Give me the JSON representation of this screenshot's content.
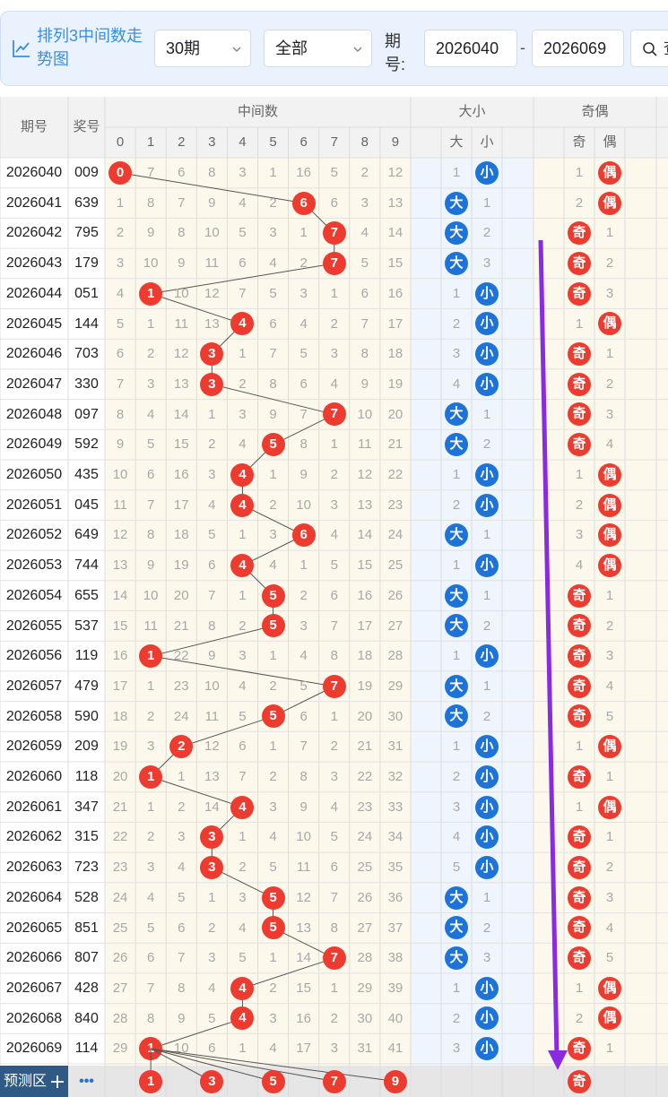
{
  "toolbar": {
    "title": "排列3中间数走势图",
    "period_select": "30期",
    "type_select": "全部",
    "issue_label": "期号:",
    "start_issue": "2026040",
    "separator": "-",
    "end_issue": "2026069",
    "search_label": "查询"
  },
  "headers": {
    "issue": "期号",
    "prize": "奖号",
    "middle": "中间数",
    "size": "大小",
    "parity": "奇偶",
    "digits": [
      "0",
      "1",
      "2",
      "3",
      "4",
      "5",
      "6",
      "7",
      "8",
      "9"
    ],
    "size_cols": [
      "大",
      "小"
    ],
    "parity_cols": [
      "奇",
      "偶"
    ]
  },
  "rows": [
    {
      "issue": "2026040",
      "prize": "009",
      "mid": 0,
      "miss": [
        0,
        7,
        6,
        8,
        3,
        1,
        16,
        5,
        2,
        12
      ],
      "size": "小",
      "size_miss": [
        1,
        0
      ],
      "parity": "偶",
      "parity_miss": [
        1,
        0
      ]
    },
    {
      "issue": "2026041",
      "prize": "639",
      "mid": 6,
      "miss": [
        1,
        8,
        7,
        9,
        4,
        2,
        0,
        6,
        3,
        13
      ],
      "size": "大",
      "size_miss": [
        0,
        1
      ],
      "parity": "偶",
      "parity_miss": [
        2,
        0
      ]
    },
    {
      "issue": "2026042",
      "prize": "795",
      "mid": 7,
      "miss": [
        2,
        9,
        8,
        10,
        5,
        3,
        1,
        0,
        4,
        14
      ],
      "size": "大",
      "size_miss": [
        0,
        2
      ],
      "parity": "奇",
      "parity_miss": [
        0,
        1
      ]
    },
    {
      "issue": "2026043",
      "prize": "179",
      "mid": 7,
      "miss": [
        3,
        10,
        9,
        11,
        6,
        4,
        2,
        0,
        5,
        15
      ],
      "size": "大",
      "size_miss": [
        0,
        3
      ],
      "parity": "奇",
      "parity_miss": [
        0,
        2
      ]
    },
    {
      "issue": "2026044",
      "prize": "051",
      "mid": 1,
      "miss": [
        4,
        0,
        10,
        12,
        7,
        5,
        3,
        1,
        6,
        16
      ],
      "size": "小",
      "size_miss": [
        1,
        0
      ],
      "parity": "奇",
      "parity_miss": [
        0,
        3
      ]
    },
    {
      "issue": "2026045",
      "prize": "144",
      "mid": 4,
      "miss": [
        5,
        1,
        11,
        13,
        0,
        6,
        4,
        2,
        7,
        17
      ],
      "size": "小",
      "size_miss": [
        2,
        0
      ],
      "parity": "偶",
      "parity_miss": [
        1,
        0
      ]
    },
    {
      "issue": "2026046",
      "prize": "703",
      "mid": 3,
      "miss": [
        6,
        2,
        12,
        0,
        1,
        7,
        5,
        3,
        8,
        18
      ],
      "size": "小",
      "size_miss": [
        3,
        0
      ],
      "parity": "奇",
      "parity_miss": [
        0,
        1
      ]
    },
    {
      "issue": "2026047",
      "prize": "330",
      "mid": 3,
      "miss": [
        7,
        3,
        13,
        0,
        2,
        8,
        6,
        4,
        9,
        19
      ],
      "size": "小",
      "size_miss": [
        4,
        0
      ],
      "parity": "奇",
      "parity_miss": [
        0,
        2
      ]
    },
    {
      "issue": "2026048",
      "prize": "097",
      "mid": 7,
      "miss": [
        8,
        4,
        14,
        1,
        3,
        9,
        7,
        0,
        10,
        20
      ],
      "size": "大",
      "size_miss": [
        0,
        1
      ],
      "parity": "奇",
      "parity_miss": [
        0,
        3
      ]
    },
    {
      "issue": "2026049",
      "prize": "592",
      "mid": 5,
      "miss": [
        9,
        5,
        15,
        2,
        4,
        0,
        8,
        1,
        11,
        21
      ],
      "size": "大",
      "size_miss": [
        0,
        2
      ],
      "parity": "奇",
      "parity_miss": [
        0,
        4
      ]
    },
    {
      "issue": "2026050",
      "prize": "435",
      "mid": 4,
      "miss": [
        10,
        6,
        16,
        3,
        0,
        1,
        9,
        2,
        12,
        22
      ],
      "size": "小",
      "size_miss": [
        1,
        0
      ],
      "parity": "偶",
      "parity_miss": [
        1,
        0
      ]
    },
    {
      "issue": "2026051",
      "prize": "045",
      "mid": 4,
      "miss": [
        11,
        7,
        17,
        4,
        0,
        2,
        10,
        3,
        13,
        23
      ],
      "size": "小",
      "size_miss": [
        2,
        0
      ],
      "parity": "偶",
      "parity_miss": [
        2,
        0
      ]
    },
    {
      "issue": "2026052",
      "prize": "649",
      "mid": 6,
      "miss": [
        12,
        8,
        18,
        5,
        1,
        3,
        0,
        4,
        14,
        24
      ],
      "size": "大",
      "size_miss": [
        0,
        1
      ],
      "parity": "偶",
      "parity_miss": [
        3,
        0
      ]
    },
    {
      "issue": "2026053",
      "prize": "744",
      "mid": 4,
      "miss": [
        13,
        9,
        19,
        6,
        0,
        4,
        1,
        5,
        15,
        25
      ],
      "size": "小",
      "size_miss": [
        1,
        0
      ],
      "parity": "偶",
      "parity_miss": [
        4,
        0
      ]
    },
    {
      "issue": "2026054",
      "prize": "655",
      "mid": 5,
      "miss": [
        14,
        10,
        20,
        7,
        1,
        0,
        2,
        6,
        16,
        26
      ],
      "size": "大",
      "size_miss": [
        0,
        1
      ],
      "parity": "奇",
      "parity_miss": [
        0,
        1
      ]
    },
    {
      "issue": "2026055",
      "prize": "537",
      "mid": 5,
      "miss": [
        15,
        11,
        21,
        8,
        2,
        0,
        3,
        7,
        17,
        27
      ],
      "size": "大",
      "size_miss": [
        0,
        2
      ],
      "parity": "奇",
      "parity_miss": [
        0,
        2
      ]
    },
    {
      "issue": "2026056",
      "prize": "119",
      "mid": 1,
      "miss": [
        16,
        0,
        22,
        9,
        3,
        1,
        4,
        8,
        18,
        28
      ],
      "size": "小",
      "size_miss": [
        1,
        0
      ],
      "parity": "奇",
      "parity_miss": [
        0,
        3
      ]
    },
    {
      "issue": "2026057",
      "prize": "479",
      "mid": 7,
      "miss": [
        17,
        1,
        23,
        10,
        4,
        2,
        5,
        0,
        19,
        29
      ],
      "size": "大",
      "size_miss": [
        0,
        1
      ],
      "parity": "奇",
      "parity_miss": [
        0,
        4
      ]
    },
    {
      "issue": "2026058",
      "prize": "590",
      "mid": 5,
      "miss": [
        18,
        2,
        24,
        11,
        5,
        0,
        6,
        1,
        20,
        30
      ],
      "size": "大",
      "size_miss": [
        0,
        2
      ],
      "parity": "奇",
      "parity_miss": [
        0,
        5
      ]
    },
    {
      "issue": "2026059",
      "prize": "209",
      "mid": 2,
      "miss": [
        19,
        3,
        0,
        12,
        6,
        1,
        7,
        2,
        21,
        31
      ],
      "size": "小",
      "size_miss": [
        1,
        0
      ],
      "parity": "偶",
      "parity_miss": [
        1,
        0
      ]
    },
    {
      "issue": "2026060",
      "prize": "118",
      "mid": 1,
      "miss": [
        20,
        0,
        1,
        13,
        7,
        2,
        8,
        3,
        22,
        32
      ],
      "size": "小",
      "size_miss": [
        2,
        0
      ],
      "parity": "奇",
      "parity_miss": [
        0,
        1
      ]
    },
    {
      "issue": "2026061",
      "prize": "347",
      "mid": 4,
      "miss": [
        21,
        1,
        2,
        14,
        0,
        3,
        9,
        4,
        23,
        33
      ],
      "size": "小",
      "size_miss": [
        3,
        0
      ],
      "parity": "偶",
      "parity_miss": [
        1,
        0
      ]
    },
    {
      "issue": "2026062",
      "prize": "315",
      "mid": 3,
      "miss": [
        22,
        2,
        3,
        0,
        1,
        4,
        10,
        5,
        24,
        34
      ],
      "size": "小",
      "size_miss": [
        4,
        0
      ],
      "parity": "奇",
      "parity_miss": [
        0,
        1
      ]
    },
    {
      "issue": "2026063",
      "prize": "723",
      "mid": 3,
      "miss": [
        23,
        3,
        4,
        0,
        2,
        5,
        11,
        6,
        25,
        35
      ],
      "size": "小",
      "size_miss": [
        5,
        0
      ],
      "parity": "奇",
      "parity_miss": [
        0,
        2
      ]
    },
    {
      "issue": "2026064",
      "prize": "528",
      "mid": 5,
      "miss": [
        24,
        4,
        5,
        1,
        3,
        0,
        12,
        7,
        26,
        36
      ],
      "size": "大",
      "size_miss": [
        0,
        1
      ],
      "parity": "奇",
      "parity_miss": [
        0,
        3
      ]
    },
    {
      "issue": "2026065",
      "prize": "851",
      "mid": 5,
      "miss": [
        25,
        5,
        6,
        2,
        4,
        0,
        13,
        8,
        27,
        37
      ],
      "size": "大",
      "size_miss": [
        0,
        2
      ],
      "parity": "奇",
      "parity_miss": [
        0,
        4
      ]
    },
    {
      "issue": "2026066",
      "prize": "807",
      "mid": 7,
      "miss": [
        26,
        6,
        7,
        3,
        5,
        1,
        14,
        0,
        28,
        38
      ],
      "size": "大",
      "size_miss": [
        0,
        3
      ],
      "parity": "奇",
      "parity_miss": [
        0,
        5
      ]
    },
    {
      "issue": "2026067",
      "prize": "428",
      "mid": 4,
      "miss": [
        27,
        7,
        8,
        4,
        0,
        2,
        15,
        1,
        29,
        39
      ],
      "size": "小",
      "size_miss": [
        1,
        0
      ],
      "parity": "偶",
      "parity_miss": [
        1,
        0
      ]
    },
    {
      "issue": "2026068",
      "prize": "840",
      "mid": 4,
      "miss": [
        28,
        8,
        9,
        5,
        0,
        3,
        16,
        2,
        30,
        40
      ],
      "size": "小",
      "size_miss": [
        2,
        0
      ],
      "parity": "偶",
      "parity_miss": [
        2,
        0
      ]
    },
    {
      "issue": "2026069",
      "prize": "114",
      "mid": 1,
      "miss": [
        29,
        0,
        10,
        6,
        1,
        4,
        17,
        3,
        31,
        41
      ],
      "size": "小",
      "size_miss": [
        3,
        0
      ],
      "parity": "奇",
      "parity_miss": [
        0,
        1
      ]
    }
  ],
  "footer": {
    "label": "预测区",
    "more": "•••",
    "predict_digits": [
      1,
      3,
      5,
      7,
      9
    ],
    "predict_parity": "奇"
  },
  "colors": {
    "red_ball": "#ee3b2f",
    "blue_ball": "#1e73d8",
    "accent": "#3a8ee6",
    "arrow": "#8a2be2"
  },
  "icons": [
    "chart-line-icon",
    "chevron-down-icon",
    "search-icon",
    "plus-icon"
  ]
}
